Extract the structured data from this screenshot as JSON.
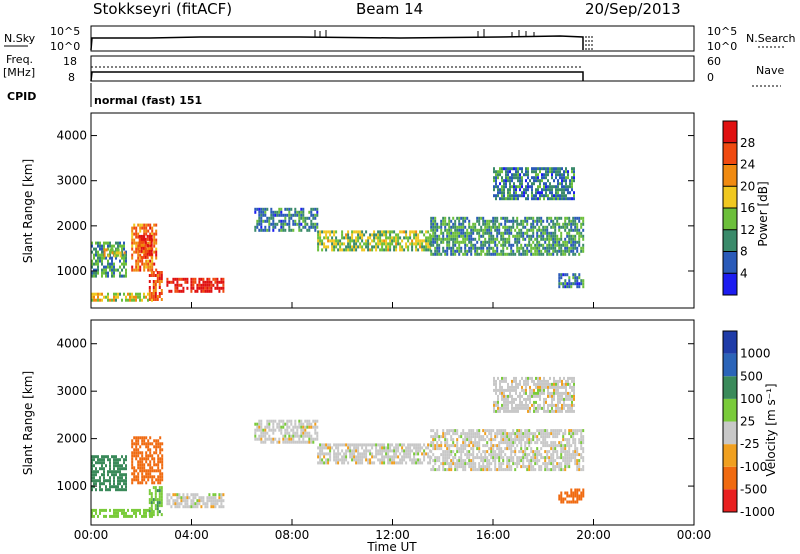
{
  "header": {
    "station": "Stokkseyri (fitACF)",
    "beam": "Beam 14",
    "date": "20/Sep/2013"
  },
  "status_panels": {
    "nsky_label": "N.Sky",
    "nsky_ticks": [
      "10^5",
      "10^0"
    ],
    "nsky_right_ticks": [
      "10^5",
      "10^0"
    ],
    "nsearch_label": "N.Search",
    "freq_label": "Freq.",
    "freq_unit": "[MHz]",
    "freq_ticks": [
      "18",
      "8"
    ],
    "nave_ticks": [
      "60",
      "0"
    ],
    "nave_label": "Nave",
    "cpid_label": "CPID",
    "cpid_text": "normal (fast) 151"
  },
  "colors": {
    "power": [
      "#1c1cf0",
      "#2a5ab8",
      "#3a8a6a",
      "#6cbf3a",
      "#f0c820",
      "#f08a10",
      "#f04a10",
      "#e01010"
    ],
    "velocity": [
      "#1f3ca8",
      "#2b64b8",
      "#3a8a5a",
      "#7acb3a",
      "#c8c8c8",
      "#f0a020",
      "#f06a10",
      "#e82020"
    ]
  },
  "chart_data": [
    {
      "type": "heatmap",
      "quantity": "Power",
      "xlabel": "",
      "ylabel": "Slant Range [km]",
      "x_ticks": [
        "00:00",
        "04:00",
        "08:00",
        "12:00",
        "16:00",
        "20:00",
        "00:00"
      ],
      "xlim_hours": [
        0,
        24
      ],
      "ylim": [
        180,
        4500
      ],
      "y_ticks": [
        1000,
        2000,
        3000,
        4000
      ],
      "colorbar": {
        "label": "Power [dB]",
        "ticks": [
          "4",
          "8",
          "12",
          "16",
          "20",
          "24",
          "28"
        ],
        "range": [
          0,
          30
        ]
      },
      "echo_regions": [
        {
          "t_start": 0.0,
          "t_end": 1.4,
          "range_low": 900,
          "range_high": 1650,
          "power": 10
        },
        {
          "t_start": 0.5,
          "t_end": 1.3,
          "range_low": 1350,
          "range_high": 1500,
          "power": 16
        },
        {
          "t_start": 1.6,
          "t_end": 2.6,
          "range_low": 1050,
          "range_high": 2050,
          "power": 22
        },
        {
          "t_start": 1.9,
          "t_end": 2.4,
          "range_low": 1300,
          "range_high": 1800,
          "power": 27
        },
        {
          "t_start": 2.3,
          "t_end": 2.8,
          "range_low": 400,
          "range_high": 1000,
          "power": 24
        },
        {
          "t_start": 3.0,
          "t_end": 5.3,
          "range_low": 550,
          "range_high": 850,
          "power": 28
        },
        {
          "t_start": 0.0,
          "t_end": 2.4,
          "range_low": 380,
          "range_high": 520,
          "power": 16
        },
        {
          "t_start": 6.5,
          "t_end": 9.0,
          "range_low": 1900,
          "range_high": 2400,
          "power": 8
        },
        {
          "t_start": 9.0,
          "t_end": 13.5,
          "range_low": 1500,
          "range_high": 1900,
          "power": 14
        },
        {
          "t_start": 13.5,
          "t_end": 19.6,
          "range_low": 1350,
          "range_high": 2200,
          "power": 10
        },
        {
          "t_start": 16.0,
          "t_end": 19.2,
          "range_low": 2600,
          "range_high": 3300,
          "power": 8
        },
        {
          "t_start": 18.6,
          "t_end": 19.6,
          "range_low": 650,
          "range_high": 950,
          "power": 8
        }
      ]
    },
    {
      "type": "heatmap",
      "quantity": "Velocity",
      "xlabel": "Time UT",
      "ylabel": "Slant Range [km]",
      "x_ticks": [
        "00:00",
        "04:00",
        "08:00",
        "12:00",
        "16:00",
        "20:00",
        "00:00"
      ],
      "xlim_hours": [
        0,
        24
      ],
      "ylim": [
        180,
        4500
      ],
      "y_ticks": [
        1000,
        2000,
        3000,
        4000
      ],
      "colorbar": {
        "label": "Velocity [m s⁻¹]",
        "ticks": [
          "1000",
          "500",
          "100",
          "25",
          "-25",
          "-100",
          "-500",
          "-1000"
        ]
      },
      "echo_regions": [
        {
          "t_start": 0.0,
          "t_end": 1.4,
          "range_low": 900,
          "range_high": 1650,
          "velocity": 300
        },
        {
          "t_start": 1.6,
          "t_end": 2.8,
          "range_low": 1050,
          "range_high": 2050,
          "velocity": -200
        },
        {
          "t_start": 2.3,
          "t_end": 2.8,
          "range_low": 400,
          "range_high": 1000,
          "velocity": 80
        },
        {
          "t_start": 3.0,
          "t_end": 5.3,
          "range_low": 550,
          "range_high": 850,
          "velocity": 0
        },
        {
          "t_start": 0.0,
          "t_end": 2.4,
          "range_low": 380,
          "range_high": 520,
          "velocity": 60
        },
        {
          "t_start": 6.5,
          "t_end": 9.0,
          "range_low": 1900,
          "range_high": 2400,
          "velocity": 0
        },
        {
          "t_start": 9.0,
          "t_end": 13.5,
          "range_low": 1500,
          "range_high": 1900,
          "velocity": 0
        },
        {
          "t_start": 13.5,
          "t_end": 19.6,
          "range_low": 1350,
          "range_high": 2200,
          "velocity": 0
        },
        {
          "t_start": 16.0,
          "t_end": 19.2,
          "range_low": 2600,
          "range_high": 3300,
          "velocity": 0
        },
        {
          "t_start": 18.6,
          "t_end": 19.6,
          "range_low": 650,
          "range_high": 950,
          "velocity": -150
        }
      ]
    }
  ]
}
